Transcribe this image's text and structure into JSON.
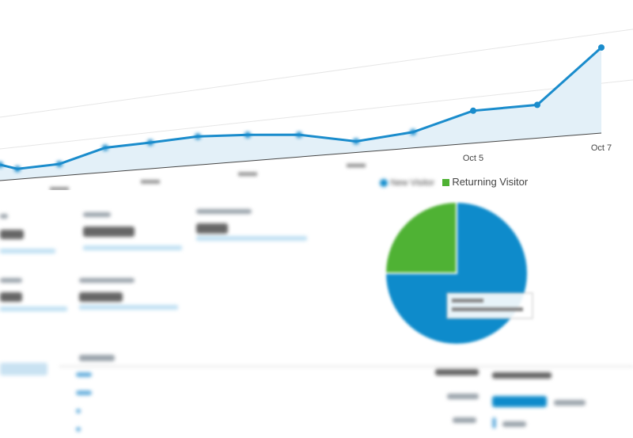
{
  "chart_data": {
    "type": "area",
    "title": "",
    "xlabel": "",
    "ylabel": "",
    "x_tick_labels": [
      {
        "index": 10,
        "label": "Oct 5"
      },
      {
        "index": 12,
        "label": "Oct 7"
      }
    ],
    "series": [
      {
        "values": [
          20,
          13,
          15,
          31,
          33,
          36,
          33,
          28,
          14,
          20,
          41,
          42,
          108
        ]
      }
    ],
    "color": "#1a8ccc",
    "fill": "#e3f0f8",
    "grid": true
  },
  "pie": {
    "chart_data": {
      "type": "pie",
      "legend": [
        "New Visitor",
        "Returning Visitor"
      ],
      "values": [
        75,
        25
      ],
      "colors": [
        "#0e8bcb",
        "#4fb234"
      ]
    }
  },
  "table": {
    "bar_fraction": [
      0.92,
      0.06
    ]
  }
}
